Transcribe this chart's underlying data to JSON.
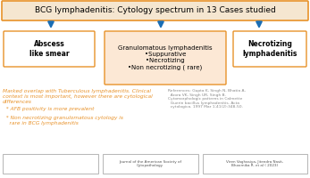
{
  "title": "BCG lymphadenitis: Cytology spectrum in 13 Cases studied",
  "title_box_color": "#f5e6d0",
  "title_border_color": "#e8922a",
  "title_fontsize": 6.5,
  "arrow_color": "#1a6eb5",
  "box1_text": "Abscess\nlike smear",
  "box1_bg": "#ffffff",
  "box1_border": "#e8922a",
  "box2_text": "Granulomatous lymphadenitis\n•Suppurative\n•Necrotizing\n•Non necrotizing ( rare)",
  "box2_bg": "#fce8d5",
  "box2_border": "#e8922a",
  "box3_text": "Necrotizing\nlymphadenitis",
  "box3_bg": "#ffffff",
  "box3_border": "#e8922a",
  "main_text": "Marked overlap with Tuberculous lymphadenitis. Clinical\ncontext is most important, however there are cytological\ndifferences",
  "main_text_color": "#e8922a",
  "bullet1": "  * AFB positivity is more prevalent",
  "bullet2": "  * Non necrotizing granulomatous cytology is\n    rare in BCG lymphadenitis",
  "bullet_color": "#e8922a",
  "ref_text": "References: Gupta K, Singh N, Bhatia A,\n  Arora VK, Singh UR, Singh B.\nCytomorphologic patterns in Calmette\n  Guerin bacillus lymphadenitis. Acta\n  cytologica. 1997 Mar 1;41(2):348-50.",
  "ref_color": "#888888",
  "footer_box2_text": "Journal of the American Society of\nCytopathology",
  "footer_box3_text": "Viren Vaghasiya, Jitendra Nasit,\nBhoomika R. et al ( 2023)",
  "footer_color": "#555555",
  "background_color": "#ffffff"
}
